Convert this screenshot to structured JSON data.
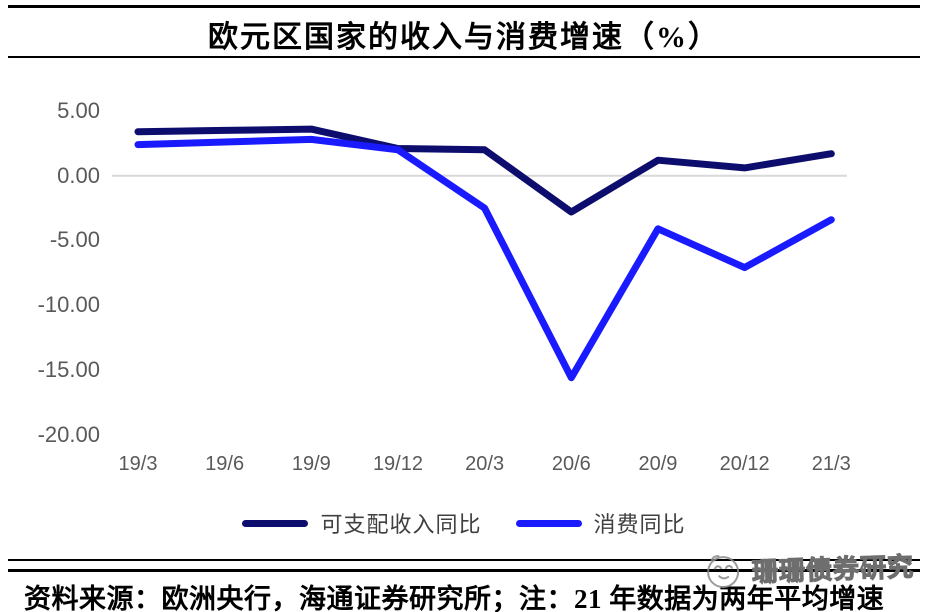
{
  "title": "欧元区国家的收入与消费增速（%）",
  "chart_data": {
    "type": "line",
    "title": "欧元区国家的收入与消费增速（%）",
    "categories": [
      "19/3",
      "19/6",
      "19/9",
      "19/12",
      "20/3",
      "20/6",
      "20/9",
      "20/12",
      "21/3"
    ],
    "series": [
      {
        "name": "可支配收入同比",
        "color": "#0D0D6E",
        "values": [
          3.4,
          3.5,
          3.6,
          2.1,
          2.0,
          -2.8,
          1.2,
          0.6,
          1.7
        ]
      },
      {
        "name": "消费同比",
        "color": "#1A1AFF",
        "values": [
          2.4,
          2.6,
          2.8,
          2.0,
          -2.5,
          -15.6,
          -4.1,
          -7.1,
          -3.4
        ]
      }
    ],
    "ytick_labels": [
      "5.00",
      "0.00",
      "-5.00",
      "-10.00",
      "-15.00",
      "-20.00"
    ],
    "ylim": [
      -20,
      5
    ],
    "grid": "zero-line-only",
    "zero_line_color": "#D9D9D9",
    "axis_text_color": "#595959",
    "legend_position": "bottom"
  },
  "footer": {
    "source_note": "资料来源：欧洲央行，海通证券研究所；注：21 年数据为两年平均增速"
  },
  "watermark": {
    "logo": "smiley-face-logo",
    "text": "珊珊债券研究"
  }
}
